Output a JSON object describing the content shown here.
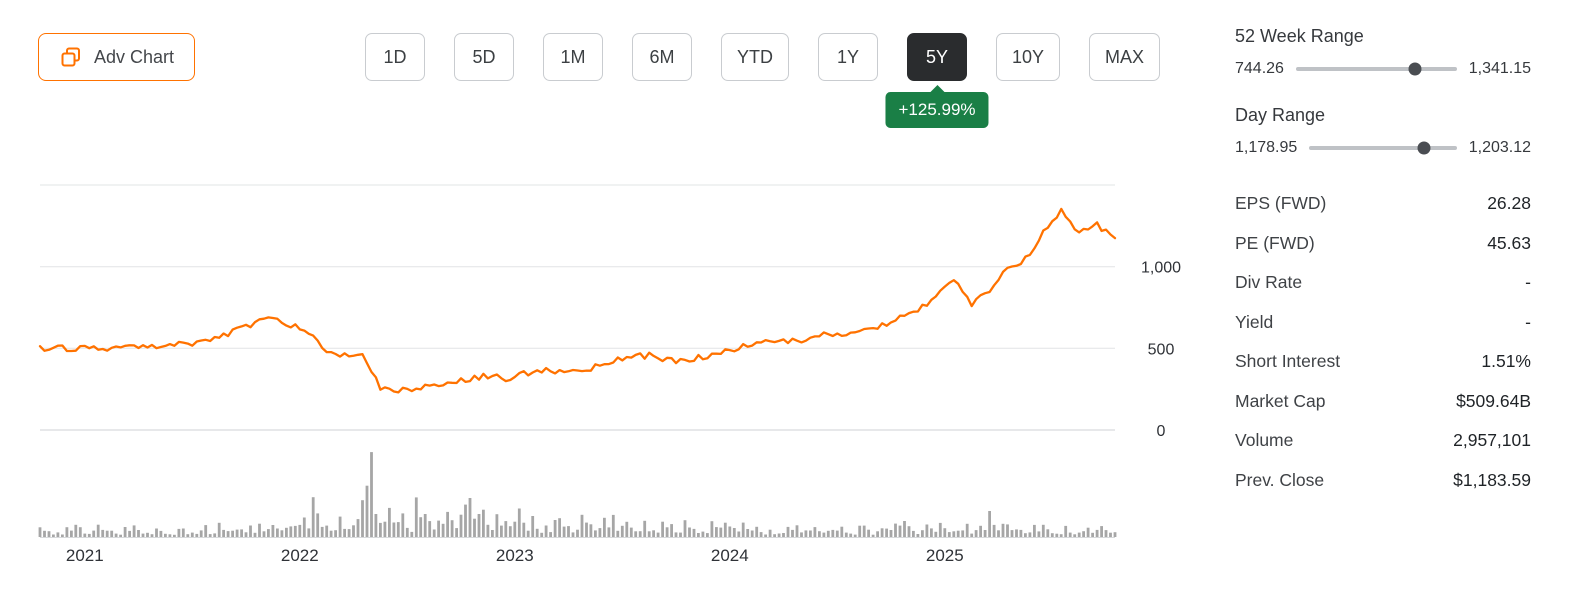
{
  "accent_color": "#ff7200",
  "toolbar": {
    "adv_chart_label": "Adv Chart"
  },
  "range_buttons": [
    {
      "label": "1D",
      "selected": false
    },
    {
      "label": "5D",
      "selected": false
    },
    {
      "label": "1M",
      "selected": false
    },
    {
      "label": "6M",
      "selected": false
    },
    {
      "label": "YTD",
      "selected": false
    },
    {
      "label": "1Y",
      "selected": false
    },
    {
      "label": "5Y",
      "selected": true
    },
    {
      "label": "10Y",
      "selected": false
    },
    {
      "label": "MAX",
      "selected": false
    }
  ],
  "performance_badge": {
    "text": "+125.99%",
    "color": "#1a7f46"
  },
  "ranges_panel": {
    "week_range": {
      "title": "52 Week Range",
      "low": "744.26",
      "high": "1,341.15",
      "position_pct": 74
    },
    "day_range": {
      "title": "Day Range",
      "low": "1,178.95",
      "high": "1,203.12",
      "position_pct": 78
    }
  },
  "stats": [
    {
      "label": "EPS (FWD)",
      "value": "26.28"
    },
    {
      "label": "PE (FWD)",
      "value": "45.63"
    },
    {
      "label": "Div Rate",
      "value": "-"
    },
    {
      "label": "Yield",
      "value": "-"
    },
    {
      "label": "Short Interest",
      "value": "1.51%"
    },
    {
      "label": "Market Cap",
      "value": "$509.64B"
    },
    {
      "label": "Volume",
      "value": "2,957,101"
    },
    {
      "label": "Prev. Close",
      "value": "$1,183.59"
    }
  ],
  "chart_data": {
    "type": "line",
    "title": "5Y price chart with volume",
    "line_color": "#ff7200",
    "volume_color": "#a6a6a6",
    "grid": true,
    "legend": "none",
    "ylim": [
      0,
      1500
    ],
    "y_ticks": [
      0,
      500,
      1000
    ],
    "y_tick_labels": [
      "0",
      "500",
      "1,000"
    ],
    "x_tick_labels": [
      "2021",
      "2022",
      "2023",
      "2024",
      "2025"
    ],
    "x_tick_month_index": [
      2.5,
      14.5,
      26.5,
      38.5,
      50.5
    ],
    "price_monthly": [
      495,
      500,
      495,
      510,
      500,
      515,
      505,
      520,
      530,
      540,
      565,
      610,
      655,
      685,
      640,
      600,
      480,
      460,
      450,
      265,
      248,
      255,
      275,
      295,
      315,
      330,
      315,
      345,
      365,
      355,
      370,
      385,
      420,
      445,
      455,
      435,
      420,
      450,
      475,
      500,
      530,
      545,
      540,
      560,
      585,
      570,
      610,
      640,
      690,
      730,
      815,
      935,
      775,
      855,
      985,
      1045,
      1210,
      1335,
      1215,
      1255,
      1175
    ],
    "volume_relative_monthly": [
      0.12,
      0.1,
      0.15,
      0.12,
      0.1,
      0.12,
      0.1,
      0.09,
      0.1,
      0.12,
      0.14,
      0.12,
      0.15,
      0.14,
      0.2,
      0.42,
      0.22,
      0.18,
      1.0,
      0.3,
      0.25,
      0.38,
      0.3,
      0.4,
      0.42,
      0.25,
      0.28,
      0.22,
      0.2,
      0.18,
      0.22,
      0.2,
      0.24,
      0.18,
      0.16,
      0.15,
      0.18,
      0.16,
      0.16,
      0.14,
      0.12,
      0.12,
      0.14,
      0.12,
      0.12,
      0.12,
      0.12,
      0.14,
      0.18,
      0.14,
      0.15,
      0.13,
      0.12,
      0.26,
      0.14,
      0.12,
      0.13,
      0.12,
      0.11,
      0.12,
      0.1
    ]
  }
}
